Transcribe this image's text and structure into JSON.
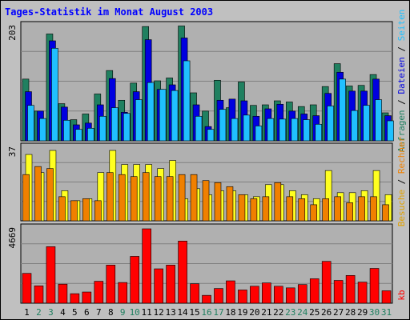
{
  "title": "Tages-Statistik im Monat August 2003",
  "colors": {
    "background": "#c0c0c0",
    "plot_background": "#b0b0b0",
    "title": "#0000ff",
    "anfragen": "#208060",
    "dateien": "#0000e0",
    "seiten": "#20c0ff",
    "besuche": "#ffff20",
    "rechner": "#f08000",
    "kb": "#ff0000",
    "day_weekday": "#000000",
    "day_weekend": "#208060"
  },
  "right_labels": {
    "top": [
      {
        "text": "Anfragen",
        "color": "#208060"
      },
      {
        "text": " / ",
        "color": "#000000"
      },
      {
        "text": "Dateien",
        "color": "#0000e0"
      },
      {
        "text": " / ",
        "color": "#000000"
      },
      {
        "text": "Seiten",
        "color": "#20c0ff"
      }
    ],
    "middle": [
      {
        "text": "Besuche",
        "color": "#e0a000"
      },
      {
        "text": " / ",
        "color": "#000000"
      },
      {
        "text": "Rechner",
        "color": "#f08000"
      }
    ],
    "bottom": [
      {
        "text": "kb",
        "color": "#ff0000"
      }
    ]
  },
  "chart_data": {
    "type": "bar",
    "title": "Tages-Statistik im Monat August 2003",
    "categories": [
      "1",
      "2",
      "3",
      "4",
      "5",
      "6",
      "7",
      "8",
      "9",
      "10",
      "11",
      "12",
      "13",
      "14",
      "15",
      "16",
      "17",
      "18",
      "19",
      "20",
      "21",
      "22",
      "23",
      "24",
      "25",
      "26",
      "27",
      "28",
      "29",
      "30",
      "31"
    ],
    "weekend_days": [
      "2",
      "3",
      "9",
      "10",
      "16",
      "17",
      "23",
      "24",
      "30",
      "31"
    ],
    "panels": [
      {
        "name": "top",
        "ymax_label": "203",
        "ylim": [
          0,
          203
        ],
        "series": [
          {
            "name": "Anfragen",
            "color": "#208060",
            "values": [
              108,
              52,
              187,
              65,
              37,
              47,
              82,
              123,
              71,
              101,
              200,
              105,
              110,
              201,
              84,
              52,
              106,
              58,
              103,
              62,
              63,
              70,
              68,
              60,
              63,
              95,
              135,
              96,
              97,
              116,
              49
            ]
          },
          {
            "name": "Dateien",
            "color": "#0000e0",
            "values": [
              86,
              52,
              175,
              59,
              28,
              31,
              63,
              109,
              50,
              86,
              177,
              90,
              98,
              180,
              63,
              25,
              71,
              73,
              70,
              43,
              56,
              64,
              52,
              47,
              44,
              83,
              120,
              87,
              87,
              108,
              44
            ]
          },
          {
            "name": "Seiten",
            "color": "#20c0ff",
            "values": [
              62,
              39,
              162,
              36,
              20,
              22,
              43,
              58,
              48,
              72,
              102,
              90,
              88,
              140,
              43,
              20,
              55,
              39,
              45,
              26,
              39,
              38,
              39,
              37,
              29,
              61,
              108,
              53,
              62,
              72,
              35
            ]
          }
        ]
      },
      {
        "name": "middle",
        "ymax_label": "37",
        "ylim": [
          0,
          37
        ],
        "series": [
          {
            "name": "Besuche",
            "color": "#ffff20",
            "values": [
              33,
              24,
              35,
              15,
              10,
              11,
              24,
              35,
              28,
              28,
              28,
              26,
              30,
              11,
              16,
              13,
              15,
              15,
              13,
              12,
              18,
              18,
              15,
              13,
              11,
              25,
              14,
              14,
              15,
              25,
              13
            ]
          },
          {
            "name": "Rechner",
            "color": "#f08000",
            "values": [
              23,
              27,
              26,
              12,
              10,
              11,
              10,
              24,
              23,
              22,
              24,
              22,
              22,
              23,
              23,
              20,
              19,
              17,
              13,
              11,
              12,
              19,
              12,
              11,
              8,
              11,
              12,
              9,
              12,
              12,
              8
            ]
          }
        ]
      },
      {
        "name": "bottom",
        "ymax_label": "4669",
        "ylim": [
          0,
          4669
        ],
        "series": [
          {
            "name": "kb",
            "color": "#ff0000",
            "values": [
              1872,
              1092,
              3549,
              1196,
              598,
              702,
              1377,
              2392,
              1300,
              2940,
              4669,
              2158,
              2392,
              3901,
              1222,
              494,
              923,
              1404,
              832,
              1066,
              1274,
              1066,
              962,
              1170,
              1534,
              2626,
              1430,
              1742,
              1326,
              2184,
              780
            ]
          }
        ]
      }
    ]
  }
}
